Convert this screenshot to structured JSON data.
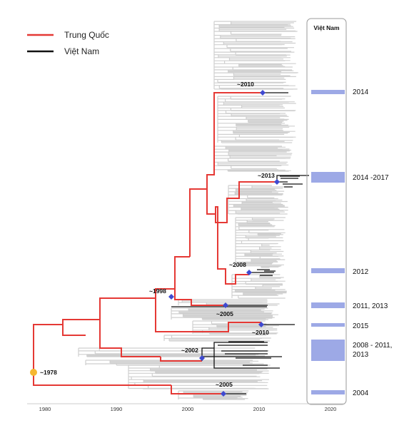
{
  "legend": {
    "china": {
      "label": "Trung Quốc",
      "color": "#e53935"
    },
    "vietnam": {
      "label": "Việt Nam",
      "color": "#111111"
    }
  },
  "panel": {
    "title": "Việt Nam",
    "bar_color": "#9da9e6"
  },
  "axis": {
    "ticks": [
      "1980",
      "1990",
      "2000",
      "2010",
      "2020"
    ],
    "tick_values": [
      1980,
      1990,
      2000,
      2010,
      2020
    ]
  },
  "root": {
    "label": "~1978",
    "year": 1978,
    "color": "#f5b731"
  },
  "node_color": "#3f4ad1",
  "background_tree_color": "#cfcfcf",
  "events": [
    {
      "label": "~2010",
      "year": 2010
    },
    {
      "label": "~2013",
      "year": 2013
    },
    {
      "label": "~2008",
      "year": 2008
    },
    {
      "label": "~1998",
      "year": 1998
    },
    {
      "label": "~2005",
      "year": 2005
    },
    {
      "label": "~2010",
      "year": 2010
    },
    {
      "label": "~2002",
      "year": 2002
    },
    {
      "label": "~2005",
      "year": 2005
    }
  ],
  "periods": [
    {
      "label_lines": [
        "2014"
      ]
    },
    {
      "label_lines": [
        "2014 -2017"
      ]
    },
    {
      "label_lines": [
        "2012"
      ]
    },
    {
      "label_lines": [
        "2011, 2013"
      ]
    },
    {
      "label_lines": [
        "2015"
      ]
    },
    {
      "label_lines": [
        "2008 - 2011,",
        "2013"
      ]
    },
    {
      "label_lines": [
        "2004"
      ]
    }
  ]
}
